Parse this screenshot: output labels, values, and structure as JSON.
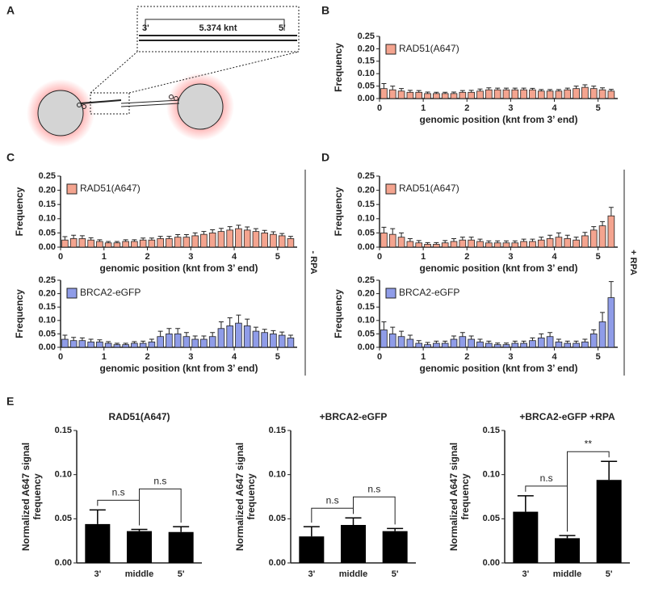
{
  "panels": [
    "A",
    "B",
    "C",
    "D",
    "E"
  ],
  "conditions": [
    "- RPA",
    "+ RPA"
  ],
  "diagram": {
    "left_end": "3'",
    "length": "5.374 knt",
    "right_end": "5'"
  },
  "chart_data": [
    {
      "type": "histogram",
      "y_label": "Frequency",
      "x_label": "genomic position (knt from 3’ end)",
      "legend": "upper left",
      "bins": [
        0,
        0.2,
        0.4,
        0.6,
        0.8,
        1,
        1.2,
        1.4,
        1.6,
        1.8,
        2,
        2.2,
        2.4,
        2.6,
        2.8,
        3,
        3.2,
        3.4,
        3.6,
        3.8,
        4,
        4.2,
        4.4,
        4.6,
        4.8,
        5,
        5.2,
        5.4
      ],
      "xlim": [
        0,
        5.45
      ],
      "xticks": [
        0,
        1,
        2,
        3,
        4,
        5
      ],
      "ylim": [
        0,
        0.25
      ],
      "yticks": [
        {
          "value": 0,
          "label": "0.00"
        },
        {
          "value": 0.05,
          "label": "0.05"
        },
        {
          "value": 0.1,
          "label": "0.10"
        },
        {
          "value": 0.15,
          "label": "0.15"
        },
        {
          "value": 0.2,
          "label": "0.20"
        },
        {
          "value": 0.25,
          "label": "0.25"
        }
      ],
      "series": [
        {
          "name": "RAD51(A647)",
          "color": "#f4a48f",
          "values": [
            0.04,
            0.035,
            0.03,
            0.025,
            0.025,
            0.02,
            0.02,
            0.02,
            0.02,
            0.025,
            0.025,
            0.03,
            0.035,
            0.035,
            0.035,
            0.035,
            0.035,
            0.035,
            0.03,
            0.03,
            0.03,
            0.035,
            0.04,
            0.045,
            0.04,
            0.035,
            0.03
          ],
          "errors": [
            0.02,
            0.015,
            0.01,
            0.008,
            0.007,
            0.006,
            0.005,
            0.005,
            0.006,
            0.007,
            0.008,
            0.008,
            0.008,
            0.007,
            0.007,
            0.007,
            0.007,
            0.006,
            0.006,
            0.006,
            0.006,
            0.007,
            0.01,
            0.01,
            0.01,
            0.008,
            0.007
          ]
        }
      ]
    },
    {
      "type": "histogram",
      "y_label": "Frequency",
      "x_label": "genomic position (knt from 3’ end)",
      "legend": "upper left",
      "bins": [
        0,
        0.2,
        0.4,
        0.6,
        0.8,
        1,
        1.2,
        1.4,
        1.6,
        1.8,
        2,
        2.2,
        2.4,
        2.6,
        2.8,
        3,
        3.2,
        3.4,
        3.6,
        3.8,
        4,
        4.2,
        4.4,
        4.6,
        4.8,
        5,
        5.2,
        5.4
      ],
      "xlim": [
        0,
        5.45
      ],
      "xticks": [
        0,
        1,
        2,
        3,
        4,
        5
      ],
      "ylim": [
        0,
        0.25
      ],
      "yticks": [
        {
          "value": 0,
          "label": "0.00"
        },
        {
          "value": 0.05,
          "label": "0.05"
        },
        {
          "value": 0.1,
          "label": "0.10"
        },
        {
          "value": 0.15,
          "label": "0.15"
        },
        {
          "value": 0.2,
          "label": "0.20"
        },
        {
          "value": 0.25,
          "label": "0.25"
        }
      ],
      "series": [
        {
          "name": "RAD51(A647)",
          "color": "#f4a48f",
          "values": [
            0.025,
            0.03,
            0.03,
            0.025,
            0.02,
            0.015,
            0.015,
            0.02,
            0.02,
            0.025,
            0.025,
            0.03,
            0.03,
            0.035,
            0.035,
            0.04,
            0.045,
            0.05,
            0.055,
            0.06,
            0.065,
            0.06,
            0.055,
            0.05,
            0.045,
            0.04,
            0.03
          ],
          "errors": [
            0.012,
            0.012,
            0.01,
            0.008,
            0.006,
            0.005,
            0.005,
            0.006,
            0.006,
            0.007,
            0.007,
            0.008,
            0.008,
            0.009,
            0.009,
            0.01,
            0.01,
            0.011,
            0.011,
            0.012,
            0.012,
            0.011,
            0.01,
            0.009,
            0.009,
            0.008,
            0.008
          ]
        }
      ]
    },
    {
      "type": "histogram",
      "y_label": "Frequency",
      "x_label": "genomic position (knt from 3’ end)",
      "legend": "upper left",
      "bins": [
        0,
        0.2,
        0.4,
        0.6,
        0.8,
        1,
        1.2,
        1.4,
        1.6,
        1.8,
        2,
        2.2,
        2.4,
        2.6,
        2.8,
        3,
        3.2,
        3.4,
        3.6,
        3.8,
        4,
        4.2,
        4.4,
        4.6,
        4.8,
        5,
        5.2,
        5.4
      ],
      "xlim": [
        0,
        5.45
      ],
      "xticks": [
        0,
        1,
        2,
        3,
        4,
        5
      ],
      "ylim": [
        0,
        0.25
      ],
      "yticks": [
        {
          "value": 0,
          "label": "0.00"
        },
        {
          "value": 0.05,
          "label": "0.05"
        },
        {
          "value": 0.1,
          "label": "0.10"
        },
        {
          "value": 0.15,
          "label": "0.15"
        },
        {
          "value": 0.2,
          "label": "0.20"
        },
        {
          "value": 0.25,
          "label": "0.25"
        }
      ],
      "series": [
        {
          "name": "BRCA2-eGFP",
          "color": "#8f9ce8",
          "values": [
            0.03,
            0.025,
            0.025,
            0.02,
            0.02,
            0.015,
            0.01,
            0.01,
            0.015,
            0.015,
            0.02,
            0.04,
            0.05,
            0.05,
            0.04,
            0.03,
            0.03,
            0.04,
            0.07,
            0.08,
            0.09,
            0.08,
            0.06,
            0.055,
            0.05,
            0.045,
            0.035
          ],
          "errors": [
            0.015,
            0.012,
            0.01,
            0.01,
            0.008,
            0.006,
            0.005,
            0.005,
            0.006,
            0.008,
            0.01,
            0.02,
            0.02,
            0.02,
            0.015,
            0.012,
            0.012,
            0.015,
            0.025,
            0.03,
            0.03,
            0.025,
            0.015,
            0.012,
            0.012,
            0.012,
            0.01
          ]
        }
      ]
    },
    {
      "type": "histogram",
      "y_label": "Frequency",
      "x_label": "genomic position (knt from 3’ end)",
      "legend": "upper left",
      "bins": [
        0,
        0.2,
        0.4,
        0.6,
        0.8,
        1,
        1.2,
        1.4,
        1.6,
        1.8,
        2,
        2.2,
        2.4,
        2.6,
        2.8,
        3,
        3.2,
        3.4,
        3.6,
        3.8,
        4,
        4.2,
        4.4,
        4.6,
        4.8,
        5,
        5.2,
        5.4
      ],
      "xlim": [
        0,
        5.45
      ],
      "xticks": [
        0,
        1,
        2,
        3,
        4,
        5
      ],
      "ylim": [
        0,
        0.25
      ],
      "yticks": [
        {
          "value": 0,
          "label": "0.00"
        },
        {
          "value": 0.05,
          "label": "0.05"
        },
        {
          "value": 0.1,
          "label": "0.10"
        },
        {
          "value": 0.15,
          "label": "0.15"
        },
        {
          "value": 0.2,
          "label": "0.20"
        },
        {
          "value": 0.25,
          "label": "0.25"
        }
      ],
      "series": [
        {
          "name": "RAD51(A647)",
          "color": "#f4a48f",
          "values": [
            0.05,
            0.045,
            0.035,
            0.02,
            0.015,
            0.01,
            0.01,
            0.015,
            0.02,
            0.025,
            0.025,
            0.02,
            0.015,
            0.015,
            0.015,
            0.015,
            0.02,
            0.02,
            0.025,
            0.03,
            0.035,
            0.03,
            0.025,
            0.04,
            0.06,
            0.075,
            0.11
          ],
          "errors": [
            0.02,
            0.02,
            0.015,
            0.01,
            0.008,
            0.006,
            0.006,
            0.008,
            0.01,
            0.01,
            0.01,
            0.008,
            0.007,
            0.007,
            0.007,
            0.007,
            0.008,
            0.008,
            0.01,
            0.012,
            0.015,
            0.012,
            0.01,
            0.012,
            0.012,
            0.015,
            0.03
          ]
        }
      ]
    },
    {
      "type": "histogram",
      "y_label": "Frequency",
      "x_label": "genomic position (knt from 3’ end)",
      "legend": "upper left",
      "bins": [
        0,
        0.2,
        0.4,
        0.6,
        0.8,
        1,
        1.2,
        1.4,
        1.6,
        1.8,
        2,
        2.2,
        2.4,
        2.6,
        2.8,
        3,
        3.2,
        3.4,
        3.6,
        3.8,
        4,
        4.2,
        4.4,
        4.6,
        4.8,
        5,
        5.2,
        5.4
      ],
      "xlim": [
        0,
        5.45
      ],
      "xticks": [
        0,
        1,
        2,
        3,
        4,
        5
      ],
      "ylim": [
        0,
        0.25
      ],
      "yticks": [
        {
          "value": 0,
          "label": "0.00"
        },
        {
          "value": 0.05,
          "label": "0.05"
        },
        {
          "value": 0.1,
          "label": "0.10"
        },
        {
          "value": 0.15,
          "label": "0.15"
        },
        {
          "value": 0.2,
          "label": "0.20"
        },
        {
          "value": 0.25,
          "label": "0.25"
        }
      ],
      "series": [
        {
          "name": "BRCA2-eGFP",
          "color": "#8f9ce8",
          "values": [
            0.065,
            0.05,
            0.04,
            0.03,
            0.015,
            0.01,
            0.015,
            0.015,
            0.03,
            0.04,
            0.03,
            0.02,
            0.015,
            0.01,
            0.01,
            0.015,
            0.015,
            0.025,
            0.035,
            0.04,
            0.02,
            0.015,
            0.015,
            0.02,
            0.05,
            0.095,
            0.185
          ],
          "errors": [
            0.03,
            0.025,
            0.02,
            0.015,
            0.01,
            0.008,
            0.008,
            0.008,
            0.012,
            0.015,
            0.012,
            0.01,
            0.008,
            0.006,
            0.006,
            0.008,
            0.008,
            0.01,
            0.015,
            0.015,
            0.01,
            0.008,
            0.008,
            0.01,
            0.015,
            0.035,
            0.06
          ]
        }
      ]
    },
    {
      "type": "bar",
      "title": "RAD51(A647)",
      "y_label": [
        "Normalized A647 signal",
        "frequency"
      ],
      "color": "#000000",
      "categories": [
        "3'",
        "middle",
        "5'"
      ],
      "values": [
        0.044,
        0.036,
        0.035
      ],
      "errors": [
        0.016,
        0.002,
        0.006
      ],
      "ylim": [
        0,
        0.15
      ],
      "yticks": [
        {
          "value": 0,
          "label": "0.00"
        },
        {
          "value": 0.05,
          "label": "0.05"
        },
        {
          "value": 0.1,
          "label": "0.10"
        },
        {
          "value": 0.15,
          "label": "0.15"
        }
      ],
      "annotations": [
        {
          "text": "n.s",
          "between": [
            0,
            1
          ]
        },
        {
          "text": "n.s",
          "between": [
            1,
            2
          ]
        }
      ]
    },
    {
      "type": "bar",
      "title": "+BRCA2-eGFP",
      "y_label": [
        "Normalized A647 signal",
        "frequency"
      ],
      "color": "#000000",
      "categories": [
        "3'",
        "middle",
        "5'"
      ],
      "values": [
        0.03,
        0.043,
        0.036
      ],
      "errors": [
        0.011,
        0.008,
        0.003
      ],
      "ylim": [
        0,
        0.15
      ],
      "yticks": [
        {
          "value": 0,
          "label": "0.00"
        },
        {
          "value": 0.05,
          "label": "0.05"
        },
        {
          "value": 0.1,
          "label": "0.10"
        },
        {
          "value": 0.15,
          "label": "0.15"
        }
      ],
      "annotations": [
        {
          "text": "n.s",
          "between": [
            0,
            1
          ]
        },
        {
          "text": "n.s",
          "between": [
            1,
            2
          ]
        }
      ]
    },
    {
      "type": "bar",
      "title": "+BRCA2-eGFP +RPA",
      "y_label": [
        "Normalized A647 signal",
        "frequency"
      ],
      "color": "#000000",
      "categories": [
        "3'",
        "middle",
        "5'"
      ],
      "values": [
        0.058,
        0.028,
        0.094
      ],
      "errors": [
        0.018,
        0.003,
        0.021
      ],
      "ylim": [
        0,
        0.15
      ],
      "yticks": [
        {
          "value": 0,
          "label": "0.00"
        },
        {
          "value": 0.05,
          "label": "0.05"
        },
        {
          "value": 0.1,
          "label": "0.10"
        },
        {
          "value": 0.15,
          "label": "0.15"
        }
      ],
      "annotations": [
        {
          "text": "n.s",
          "between": [
            0,
            1
          ]
        },
        {
          "text": "**",
          "between": [
            1,
            2
          ]
        }
      ]
    }
  ]
}
